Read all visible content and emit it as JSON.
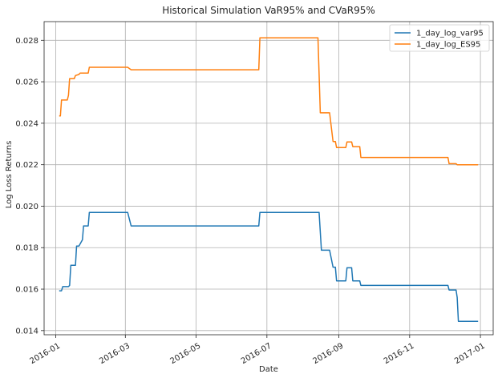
{
  "chart_data": {
    "type": "line",
    "title": "Historical Simulation VaR95% and CVaR95%",
    "xlabel": "Date",
    "ylabel": "Log Loss Returns",
    "xlim": [
      "2015-12-22",
      "2017-01-12"
    ],
    "ylim": [
      0.0138,
      0.0289
    ],
    "x_ticks": [
      "2016-01",
      "2016-03",
      "2016-05",
      "2016-07",
      "2016-09",
      "2016-11",
      "2017-01"
    ],
    "y_ticks": [
      "0.014",
      "0.016",
      "0.018",
      "0.020",
      "0.022",
      "0.024",
      "0.026",
      "0.028"
    ],
    "grid": true,
    "legend_position": "upper right",
    "series": [
      {
        "name": "1_day_log_var95",
        "color": "#1f77b4",
        "points": [
          [
            "2016-01-04",
            0.01592
          ],
          [
            "2016-01-06",
            0.01592
          ],
          [
            "2016-01-07",
            0.01612
          ],
          [
            "2016-01-12",
            0.01612
          ],
          [
            "2016-01-13",
            0.01618
          ],
          [
            "2016-01-14",
            0.01715
          ],
          [
            "2016-01-18",
            0.01715
          ],
          [
            "2016-01-19",
            0.01808
          ],
          [
            "2016-01-21",
            0.01808
          ],
          [
            "2016-01-22",
            0.01818
          ],
          [
            "2016-01-24",
            0.01838
          ],
          [
            "2016-01-25",
            0.01905
          ],
          [
            "2016-01-29",
            0.01905
          ],
          [
            "2016-01-30",
            0.0197
          ],
          [
            "2016-03-03",
            0.0197
          ],
          [
            "2016-03-06",
            0.01905
          ],
          [
            "2016-06-24",
            0.01905
          ],
          [
            "2016-06-25",
            0.0197
          ],
          [
            "2016-08-15",
            0.0197
          ],
          [
            "2016-08-17",
            0.01788
          ],
          [
            "2016-08-24",
            0.01788
          ],
          [
            "2016-08-27",
            0.01706
          ],
          [
            "2016-08-29",
            0.01706
          ],
          [
            "2016-08-30",
            0.0164
          ],
          [
            "2016-09-07",
            0.0164
          ],
          [
            "2016-09-08",
            0.01703
          ],
          [
            "2016-09-12",
            0.01703
          ],
          [
            "2016-09-13",
            0.0164
          ],
          [
            "2016-09-19",
            0.0164
          ],
          [
            "2016-09-20",
            0.01618
          ],
          [
            "2016-12-04",
            0.01618
          ],
          [
            "2016-12-05",
            0.01596
          ],
          [
            "2016-12-11",
            0.01596
          ],
          [
            "2016-12-12",
            0.0156
          ],
          [
            "2016-12-13",
            0.01445
          ],
          [
            "2016-12-30",
            0.01445
          ]
        ]
      },
      {
        "name": "1_day_log_ES95",
        "color": "#ff7f0e",
        "points": [
          [
            "2016-01-04",
            0.02435
          ],
          [
            "2016-01-05",
            0.02435
          ],
          [
            "2016-01-06",
            0.02512
          ],
          [
            "2016-01-11",
            0.02512
          ],
          [
            "2016-01-12",
            0.02535
          ],
          [
            "2016-01-13",
            0.02615
          ],
          [
            "2016-01-17",
            0.02615
          ],
          [
            "2016-01-18",
            0.0263
          ],
          [
            "2016-01-21",
            0.02635
          ],
          [
            "2016-01-22",
            0.02642
          ],
          [
            "2016-01-29",
            0.02642
          ],
          [
            "2016-01-30",
            0.0267
          ],
          [
            "2016-03-03",
            0.0267
          ],
          [
            "2016-03-06",
            0.02658
          ],
          [
            "2016-06-24",
            0.02658
          ],
          [
            "2016-06-25",
            0.02812
          ],
          [
            "2016-08-14",
            0.02812
          ],
          [
            "2016-08-16",
            0.0245
          ],
          [
            "2016-08-24",
            0.0245
          ],
          [
            "2016-08-27",
            0.02312
          ],
          [
            "2016-08-29",
            0.02312
          ],
          [
            "2016-08-30",
            0.02283
          ],
          [
            "2016-09-07",
            0.02283
          ],
          [
            "2016-09-08",
            0.0231
          ],
          [
            "2016-09-12",
            0.0231
          ],
          [
            "2016-09-13",
            0.02287
          ],
          [
            "2016-09-19",
            0.02287
          ],
          [
            "2016-09-20",
            0.02235
          ],
          [
            "2016-12-04",
            0.02235
          ],
          [
            "2016-12-05",
            0.02205
          ],
          [
            "2016-12-11",
            0.02205
          ],
          [
            "2016-12-12",
            0.022
          ],
          [
            "2016-12-30",
            0.022
          ]
        ]
      }
    ]
  }
}
